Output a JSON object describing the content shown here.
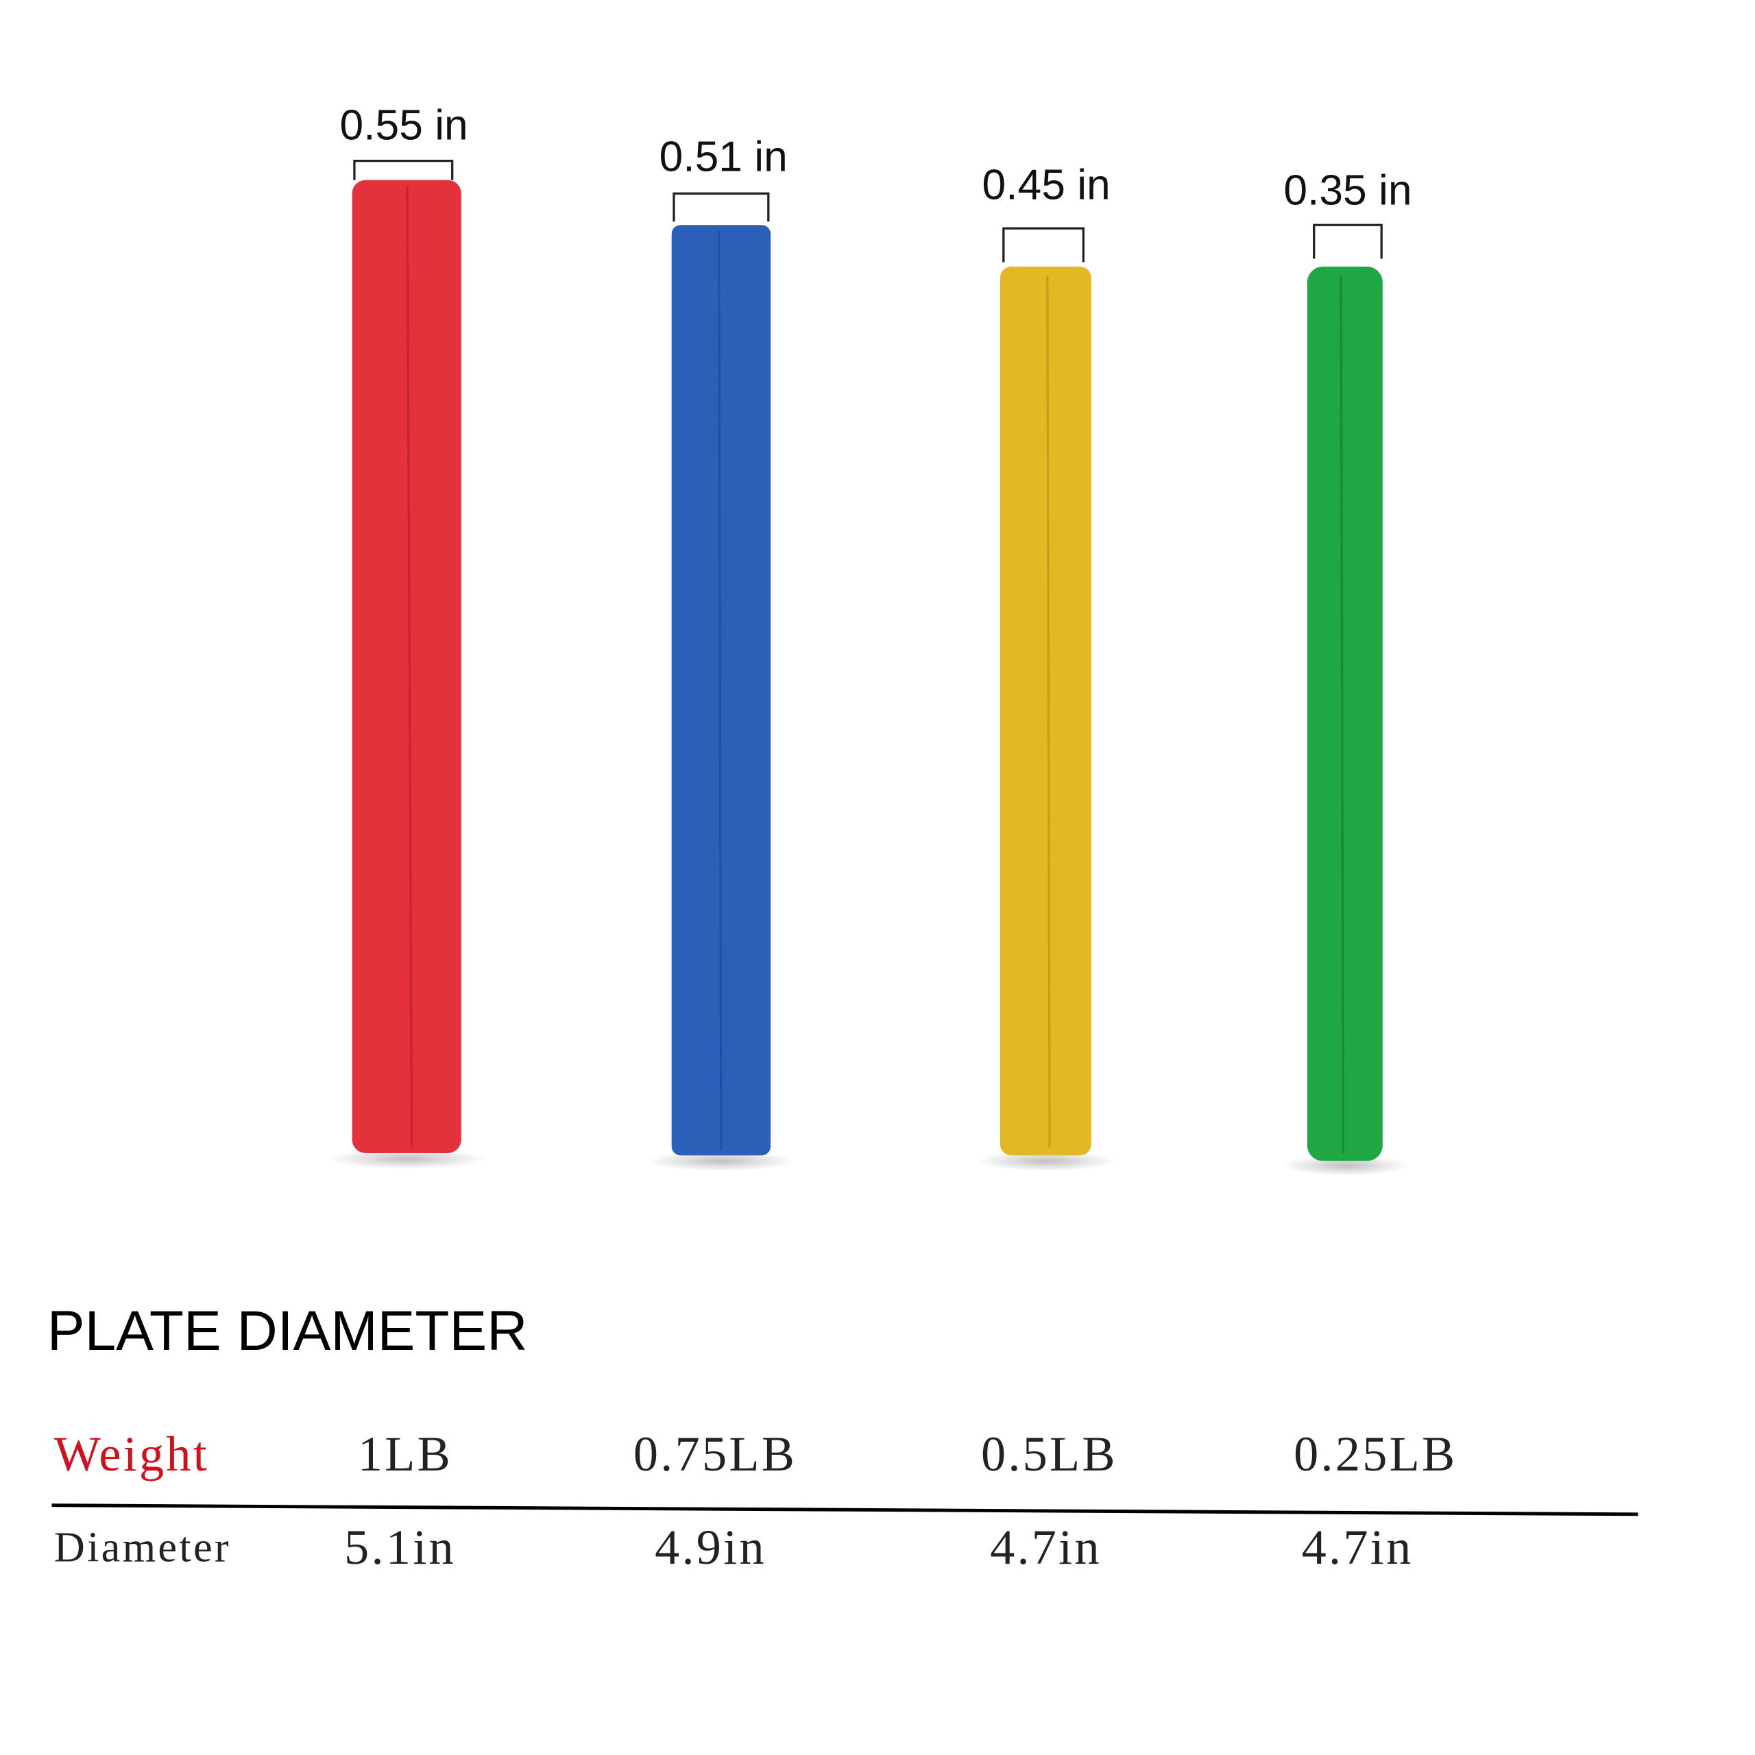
{
  "plates": [
    {
      "thickness": "0.55 in"
    },
    {
      "thickness": "0.51 in"
    },
    {
      "thickness": "0.45 in"
    },
    {
      "thickness": "0.35 in"
    }
  ],
  "title": "PLATE DIAMETER",
  "table": {
    "rows": [
      [
        "Weight",
        "1LB",
        "0.75LB",
        "0.5LB",
        "0.25LB"
      ],
      [
        "Diameter",
        "5.1in",
        "4.9in",
        "4.7in",
        "4.7in"
      ]
    ]
  }
}
